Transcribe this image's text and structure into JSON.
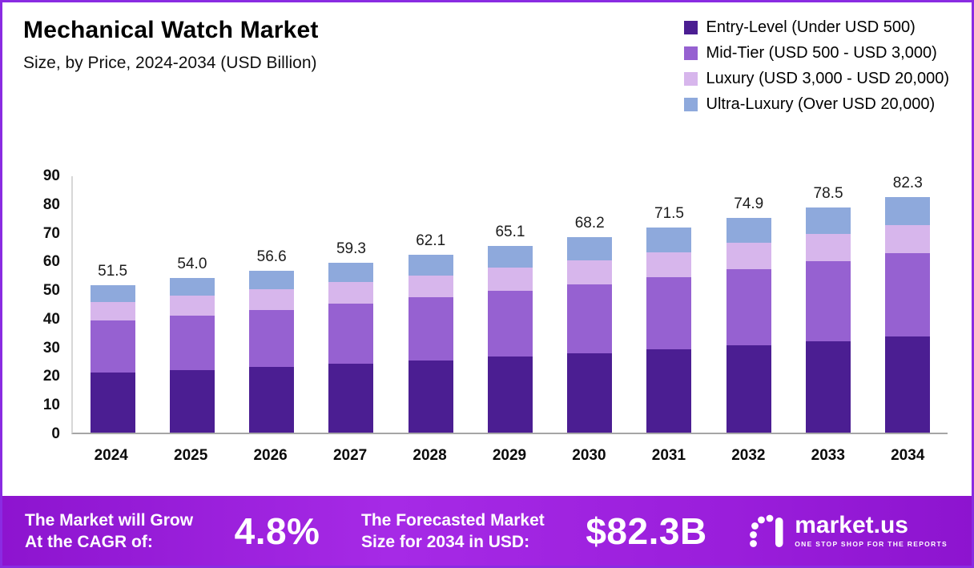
{
  "header": {
    "title": "Mechanical Watch Market",
    "subtitle": "Size, by Price, 2024-2034 (USD Billion)"
  },
  "legend": [
    {
      "label": "Entry-Level (Under USD 500)",
      "color": "#4b1e92"
    },
    {
      "label": "Mid-Tier (USD 500 - USD 3,000)",
      "color": "#9661d1"
    },
    {
      "label": "Luxury (USD 3,000 - USD 20,000)",
      "color": "#d7b6ec"
    },
    {
      "label": "Ultra-Luxury (Over USD 20,000)",
      "color": "#8ea9dc"
    }
  ],
  "chart_data": {
    "type": "bar",
    "stacked": true,
    "title": "Mechanical Watch Market Size, by Price, 2024-2034 (USD Billion)",
    "xlabel": "",
    "ylabel": "",
    "ylim": [
      0,
      90
    ],
    "yticks": [
      0,
      10,
      20,
      30,
      40,
      50,
      60,
      70,
      80,
      90
    ],
    "grid": false,
    "legend_position": "top-right",
    "categories": [
      "2024",
      "2025",
      "2026",
      "2027",
      "2028",
      "2029",
      "2030",
      "2031",
      "2032",
      "2033",
      "2034"
    ],
    "series": [
      {
        "name": "Entry-Level (Under USD 500)",
        "color": "#4b1e92",
        "values": [
          21.0,
          21.8,
          22.8,
          24.0,
          25.2,
          26.5,
          27.8,
          29.2,
          30.5,
          32.0,
          33.5
        ]
      },
      {
        "name": "Mid-Tier (USD 500 - USD 3,000)",
        "color": "#9661d1",
        "values": [
          18.0,
          19.0,
          20.0,
          21.0,
          22.0,
          23.0,
          24.0,
          25.0,
          26.5,
          27.8,
          29.0
        ]
      },
      {
        "name": "Luxury (USD 3,000 - USD 20,000)",
        "color": "#d7b6ec",
        "values": [
          6.5,
          7.0,
          7.2,
          7.5,
          7.7,
          8.0,
          8.4,
          8.8,
          9.2,
          9.5,
          9.8
        ]
      },
      {
        "name": "Ultra-Luxury (Over USD 20,000)",
        "color": "#8ea9dc",
        "values": [
          6.0,
          6.2,
          6.6,
          6.8,
          7.2,
          7.6,
          8.0,
          8.5,
          8.7,
          9.2,
          10.0
        ]
      }
    ],
    "totals": [
      51.5,
      54.0,
      56.6,
      59.3,
      62.1,
      65.1,
      68.2,
      71.5,
      74.9,
      78.5,
      82.3
    ],
    "total_labels": [
      "51.5",
      "54.0",
      "56.6",
      "59.3",
      "62.1",
      "65.1",
      "68.2",
      "71.5",
      "74.9",
      "78.5",
      "82.3"
    ]
  },
  "banner": {
    "cagr_line1": "The Market will Grow",
    "cagr_line2": "At the CAGR of:",
    "cagr_value": "4.8%",
    "forecast_line1": "The Forecasted Market",
    "forecast_line2": "Size for 2034 in USD:",
    "forecast_value": "$82.3B",
    "brand": "market.us",
    "brand_tagline": "ONE STOP SHOP FOR THE REPORTS",
    "background_color": "#9a1edb"
  }
}
